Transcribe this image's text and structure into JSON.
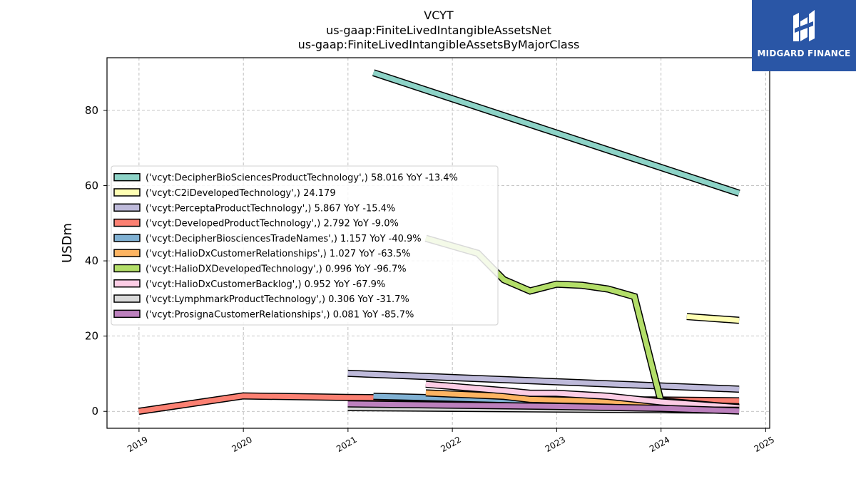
{
  "chart_data": {
    "type": "line",
    "title": [
      "VCYT",
      "us-gaap:FiniteLivedIntangibleAssetsNet",
      "us-gaap:FiniteLivedIntangibleAssetsByMajorClass"
    ],
    "xlabel": "",
    "ylabel": "USDm",
    "xlim": [
      "2018-09-11",
      "2025-01-15"
    ],
    "ylim": [
      -4.5,
      94
    ],
    "x_ticks": [
      "2019",
      "2020",
      "2021",
      "2022",
      "2023",
      "2024",
      "2025"
    ],
    "y_ticks": [
      0,
      20,
      40,
      60,
      80
    ],
    "grid": true,
    "legend_position": "center-left",
    "series": [
      {
        "name": "('vcyt:DecipherBioSciencesProductTechnology',) 58.016 YoY -13.4%",
        "color": "#8dd3c7",
        "points": [
          [
            "2021-03-31",
            90.0
          ],
          [
            "2024-09-30",
            58.0
          ]
        ]
      },
      {
        "name": "('vcyt:C2iDevelopedTechnology',) 24.179",
        "color": "#ffffb3",
        "points": [
          [
            "2024-03-31",
            25.2
          ],
          [
            "2024-09-30",
            24.2
          ]
        ]
      },
      {
        "name": "('vcyt:PerceptaProductTechnology',) 5.867 YoY -15.4%",
        "color": "#bebada",
        "points": [
          [
            "2020-12-31",
            10.1
          ],
          [
            "2024-09-30",
            5.9
          ]
        ]
      },
      {
        "name": "('vcyt:DevelopedProductTechnology',) 2.792 YoY -9.0%",
        "color": "#fb8072",
        "points": [
          [
            "2018-12-31",
            0.0
          ],
          [
            "2019-12-31",
            4.1
          ],
          [
            "2020-12-31",
            3.7
          ],
          [
            "2021-12-31",
            3.4
          ],
          [
            "2022-12-31",
            3.2
          ],
          [
            "2023-12-31",
            3.0
          ],
          [
            "2024-09-30",
            2.8
          ]
        ]
      },
      {
        "name": "('vcyt:DecipherBiosciencesTradeNames',) 1.157 YoY -40.9%",
        "color": "#80b1d3",
        "points": [
          [
            "2021-03-31",
            4.0
          ],
          [
            "2022-12-31",
            2.8
          ],
          [
            "2023-12-31",
            2.0
          ],
          [
            "2024-09-30",
            1.2
          ]
        ]
      },
      {
        "name": "('vcyt:HalioDxCustomerRelationships',) 1.027 YoY -63.5%",
        "color": "#fdb462",
        "points": [
          [
            "2021-09-30",
            4.9
          ],
          [
            "2022-06-30",
            4.0
          ],
          [
            "2022-09-30",
            3.2
          ],
          [
            "2023-06-30",
            2.7
          ],
          [
            "2023-12-31",
            2.0
          ],
          [
            "2024-09-30",
            1.0
          ]
        ]
      },
      {
        "name": "('vcyt:HalioDXDevelopedTechnology',) 0.996 YoY -96.7%",
        "color": "#b3de69",
        "points": [
          [
            "2021-09-30",
            46.0
          ],
          [
            "2022-03-31",
            42.0
          ],
          [
            "2022-06-30",
            35.0
          ],
          [
            "2022-09-30",
            32.0
          ],
          [
            "2022-12-31",
            33.8
          ],
          [
            "2023-03-31",
            33.5
          ],
          [
            "2023-06-30",
            32.5
          ],
          [
            "2023-09-30",
            30.5
          ],
          [
            "2023-12-31",
            2.8
          ],
          [
            "2024-09-30",
            1.0
          ]
        ]
      },
      {
        "name": "('vcyt:HalioDxCustomerBacklog',) 0.952 YoY -67.9%",
        "color": "#fccde5",
        "points": [
          [
            "2021-09-30",
            7.2
          ],
          [
            "2022-06-30",
            5.5
          ],
          [
            "2022-09-30",
            4.8
          ],
          [
            "2022-12-31",
            4.8
          ],
          [
            "2023-06-30",
            4.0
          ],
          [
            "2023-12-31",
            2.5
          ],
          [
            "2024-09-30",
            1.0
          ]
        ]
      },
      {
        "name": "('vcyt:LymphmarkProductTechnology',) 0.306 YoY -31.7%",
        "color": "#d9d9d9",
        "points": [
          [
            "2020-12-31",
            1.0
          ],
          [
            "2024-09-30",
            0.3
          ]
        ]
      },
      {
        "name": "('vcyt:ProsignaCustomerRelationships',) 0.081 YoY -85.7%",
        "color": "#bc80bd",
        "points": [
          [
            "2020-12-31",
            2.0
          ],
          [
            "2022-12-31",
            1.3
          ],
          [
            "2023-12-31",
            0.8
          ],
          [
            "2024-09-30",
            0.1
          ]
        ]
      }
    ]
  },
  "logo": {
    "text": "MIDGARD FINANCE"
  }
}
